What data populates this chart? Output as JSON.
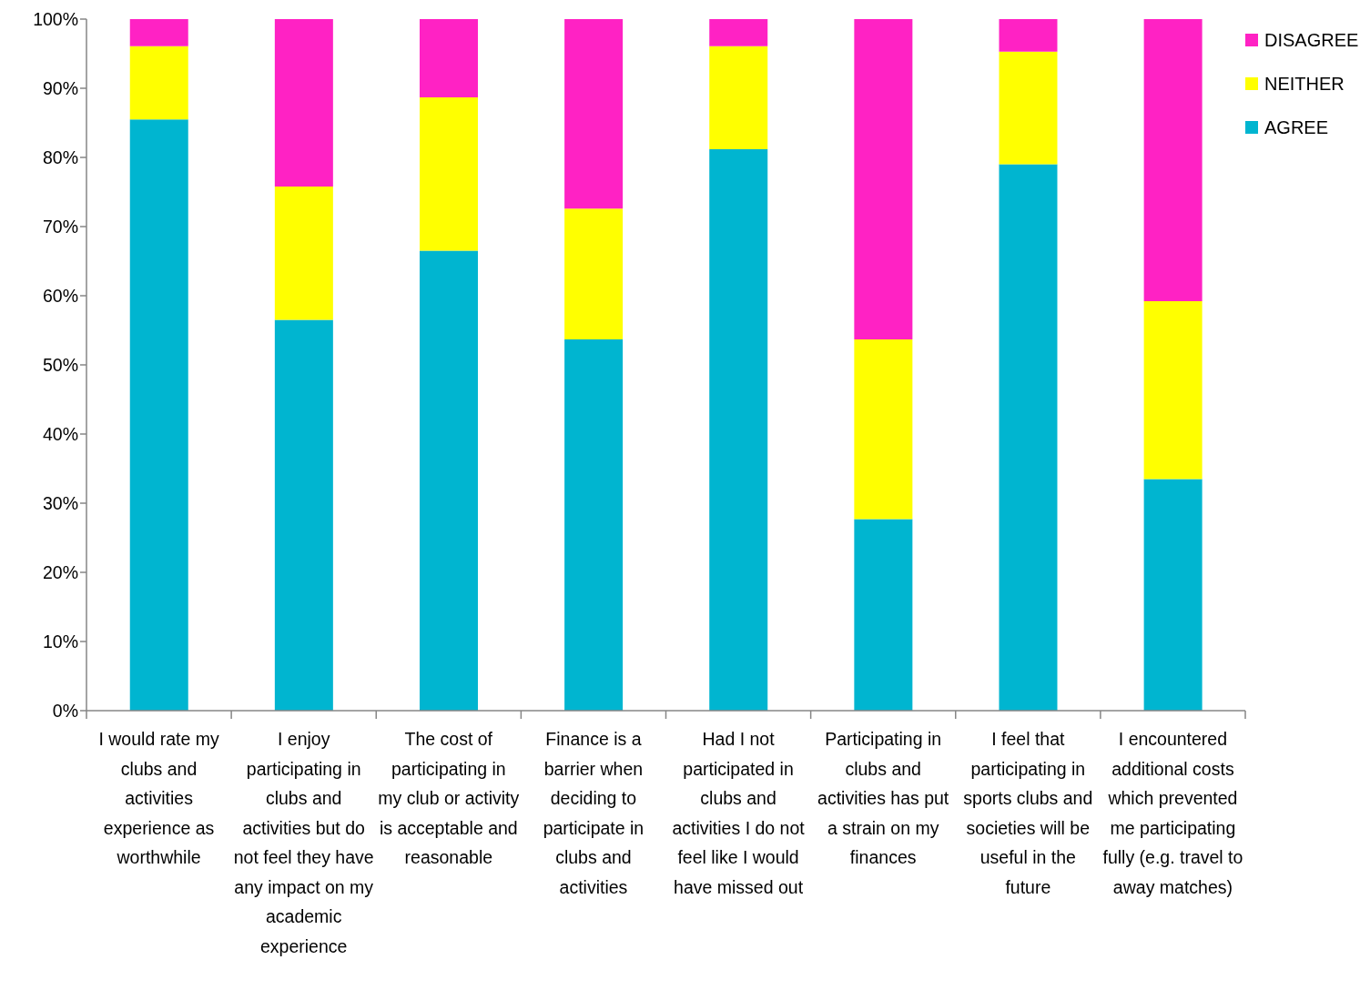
{
  "chart_data": {
    "type": "bar",
    "stacked": true,
    "categories": [
      "I would rate my clubs and activities experience as worthwhile",
      "I enjoy participating in clubs and activities but do not feel they have any impact on my academic experience",
      "The cost of participating in my club or activity is acceptable and reasonable",
      "Finance is a barrier when deciding to participate in clubs and activities",
      "Had I not participated in clubs and activities I do not feel like I would have missed out",
      "Participating in clubs and activities has put a strain on my finances",
      "I feel that participating in sports clubs and societies will be useful in the future",
      "I encountered additional costs which prevented me participating fully (e.g. travel to away matches)"
    ],
    "series": [
      {
        "name": "AGREE",
        "color": "#00b5d0",
        "values": [
          85.5,
          56.5,
          66.5,
          53.7,
          81.2,
          27.7,
          79.0,
          33.5
        ]
      },
      {
        "name": "NEITHER",
        "color": "#ffff00",
        "values": [
          10.6,
          19.3,
          22.2,
          18.9,
          14.9,
          26.0,
          16.3,
          25.7
        ]
      },
      {
        "name": "DISAGREE",
        "color": "#ff22c4",
        "values": [
          3.9,
          24.2,
          11.3,
          27.4,
          3.9,
          46.3,
          4.7,
          40.8
        ]
      }
    ],
    "ylim": [
      0,
      100
    ],
    "yticks": [
      {
        "value": 0,
        "label": "0%"
      },
      {
        "value": 10,
        "label": "10%"
      },
      {
        "value": 20,
        "label": "20%"
      },
      {
        "value": 30,
        "label": "30%"
      },
      {
        "value": 40,
        "label": "40%"
      },
      {
        "value": 50,
        "label": "50%"
      },
      {
        "value": 60,
        "label": "60%"
      },
      {
        "value": 70,
        "label": "70%"
      },
      {
        "value": 80,
        "label": "80%"
      },
      {
        "value": 90,
        "label": "90%"
      },
      {
        "value": 100,
        "label": "100%"
      }
    ],
    "legend": "top right"
  }
}
